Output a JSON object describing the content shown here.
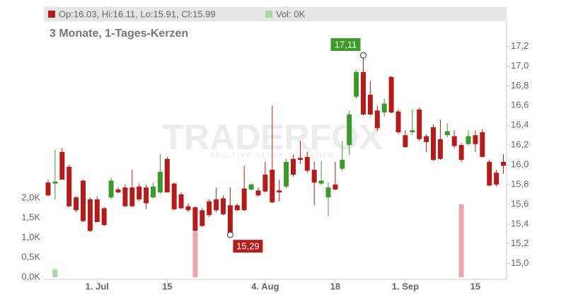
{
  "chart_data": {
    "type": "candlestick",
    "title": "3 Monate, 1-Tages-Kerzen",
    "legend": {
      "price": "Op:16.03, Hi:16.11, Lo:15.91, Cl:15.99",
      "volume": "Vol: 0K"
    },
    "watermark": {
      "title": "TRADERFOX",
      "subtitle": "REALTIME STOCK SCREENER"
    },
    "up_color": "#3c9a2a",
    "down_color": "#b41c1c",
    "volume_up_color": "#a9dba0",
    "volume_down_color": "#eaa6ae",
    "categories": [
      null,
      null,
      null,
      null,
      null,
      null,
      null,
      "1. Jul",
      null,
      null,
      null,
      null,
      null,
      null,
      null,
      null,
      null,
      "15",
      null,
      null,
      null,
      null,
      null,
      null,
      null,
      null,
      null,
      null,
      null,
      null,
      null,
      "4. Aug",
      null,
      null,
      null,
      null,
      null,
      null,
      null,
      null,
      null,
      "18",
      null,
      null,
      null,
      null,
      null,
      null,
      null,
      null,
      null,
      "1. Sep",
      null,
      null,
      null,
      null,
      null,
      null,
      null,
      null,
      null,
      "15",
      null,
      null,
      null,
      null
    ],
    "open": [
      15.82,
      15.81,
      16.13,
      15.98,
      15.67,
      15.84,
      15.65,
      15.65,
      15.56,
      15.67,
      15.75,
      15.77,
      15.77,
      15.78,
      15.77,
      15.67,
      15.72,
      16.06,
      15.81,
      15.7,
      15.58,
      15.57,
      15.54,
      15.63,
      15.65,
      15.66,
      15.59,
      15.59,
      15.76,
      15.75,
      15.74,
      15.9,
      15.95,
      15.74,
      15.78,
      16.06,
      16.07,
      16.08,
      15.95,
      15.81,
      15.67,
      15.8,
      15.96,
      16.2,
      16.69,
      16.94,
      16.71,
      16.55,
      16.53,
      16.89,
      16.54,
      16.3,
      16.33,
      16.56,
      16.29,
      16.38,
      16.26,
      16.3,
      16.29,
      16.2,
      16.21,
      16.3,
      16.33,
      16.03,
      15.92,
      16.03
    ],
    "high": [
      15.85,
      16.15,
      16.17,
      16.0,
      15.68,
      15.85,
      15.67,
      15.68,
      15.57,
      15.87,
      15.77,
      15.8,
      15.95,
      15.81,
      15.8,
      15.82,
      16.11,
      16.08,
      15.82,
      15.72,
      15.61,
      15.58,
      15.56,
      15.65,
      15.77,
      15.69,
      15.77,
      15.61,
      15.99,
      15.81,
      15.77,
      16.03,
      16.6,
      15.85,
      16.06,
      16.1,
      16.24,
      16.13,
      16.03,
      16.04,
      15.82,
      16.03,
      16.24,
      16.55,
      16.96,
      17.11,
      16.85,
      16.6,
      16.67,
      16.9,
      16.56,
      16.35,
      16.56,
      16.58,
      16.31,
      16.41,
      16.46,
      16.42,
      16.35,
      16.22,
      16.35,
      16.35,
      16.36,
      16.05,
      15.95,
      16.11
    ],
    "low": [
      15.68,
      15.65,
      15.85,
      15.57,
      15.52,
      15.42,
      15.32,
      15.42,
      15.38,
      15.65,
      15.71,
      15.57,
      15.57,
      15.63,
      15.55,
      15.66,
      15.71,
      15.72,
      15.54,
      15.55,
      15.52,
      15.32,
      15.37,
      15.47,
      15.52,
      15.49,
      15.29,
      15.53,
      15.53,
      15.74,
      15.68,
      15.72,
      15.61,
      15.63,
      15.76,
      15.88,
      16.01,
      15.92,
      15.59,
      15.8,
      15.48,
      15.74,
      15.94,
      16.1,
      16.67,
      16.5,
      16.5,
      16.34,
      16.49,
      16.52,
      16.31,
      16.17,
      16.3,
      16.24,
      16.13,
      16.04,
      16.05,
      16.28,
      16.17,
      16.03,
      16.2,
      16.13,
      16.08,
      15.78,
      15.78,
      15.91
    ],
    "close": [
      15.69,
      15.83,
      15.85,
      15.58,
      15.54,
      15.43,
      15.33,
      15.42,
      15.39,
      15.84,
      15.72,
      15.58,
      15.58,
      15.65,
      15.61,
      15.78,
      15.93,
      15.72,
      15.55,
      15.56,
      15.54,
      15.33,
      15.38,
      15.49,
      15.54,
      15.5,
      15.3,
      15.54,
      15.54,
      15.8,
      15.69,
      15.73,
      15.62,
      15.72,
      16.03,
      15.9,
      16.05,
      15.94,
      15.82,
      15.84,
      15.77,
      15.75,
      16.05,
      16.51,
      16.94,
      16.51,
      16.51,
      16.37,
      16.62,
      16.53,
      16.33,
      16.18,
      16.35,
      16.26,
      16.23,
      16.05,
      16.06,
      16.34,
      16.19,
      16.05,
      16.29,
      16.21,
      16.08,
      15.79,
      15.8,
      15.99
    ],
    "volume": [
      0,
      0.2,
      0,
      0,
      0,
      0,
      0,
      0,
      0,
      0,
      0,
      0,
      0,
      0,
      0,
      0,
      0,
      0,
      0,
      0,
      0,
      1.14,
      0,
      0,
      0,
      0,
      0,
      0,
      0,
      0,
      0,
      0,
      0,
      0,
      0,
      0,
      0,
      0,
      0,
      0,
      0,
      0,
      0,
      0,
      0,
      0,
      0,
      0,
      0,
      0,
      0,
      0,
      0,
      0,
      0,
      0,
      0,
      0,
      0,
      1.84,
      0,
      0,
      0,
      0,
      0,
      0
    ],
    "annotations": [
      {
        "label": "17,11",
        "value": 17.11
      },
      {
        "label": "15,29",
        "value": 15.29
      }
    ],
    "ylim": [
      14.84,
      17.44
    ],
    "yticks": [
      {
        "value": 15.0,
        "label": "15,0"
      },
      {
        "value": 15.2,
        "label": "15,2"
      },
      {
        "value": 15.4,
        "label": "15,4"
      },
      {
        "value": 15.6,
        "label": "15,6"
      },
      {
        "value": 15.8,
        "label": "15,8"
      },
      {
        "value": 16.0,
        "label": "16,0"
      },
      {
        "value": 16.2,
        "label": "16,2"
      },
      {
        "value": 16.4,
        "label": "16,4"
      },
      {
        "value": 16.6,
        "label": "16,6"
      },
      {
        "value": 16.8,
        "label": "16,8"
      },
      {
        "value": 17.0,
        "label": "17,0"
      },
      {
        "value": 17.2,
        "label": "17,2"
      }
    ],
    "y2lim": [
      0,
      2.2
    ],
    "y2ticks": [
      {
        "value": 0,
        "label": "0,0K"
      },
      {
        "value": 0.5,
        "label": "0,5K"
      },
      {
        "value": 1.0,
        "label": "1,0K"
      },
      {
        "value": 1.5,
        "label": "1,5K"
      },
      {
        "value": 2.0,
        "label": "2,0K"
      }
    ]
  }
}
